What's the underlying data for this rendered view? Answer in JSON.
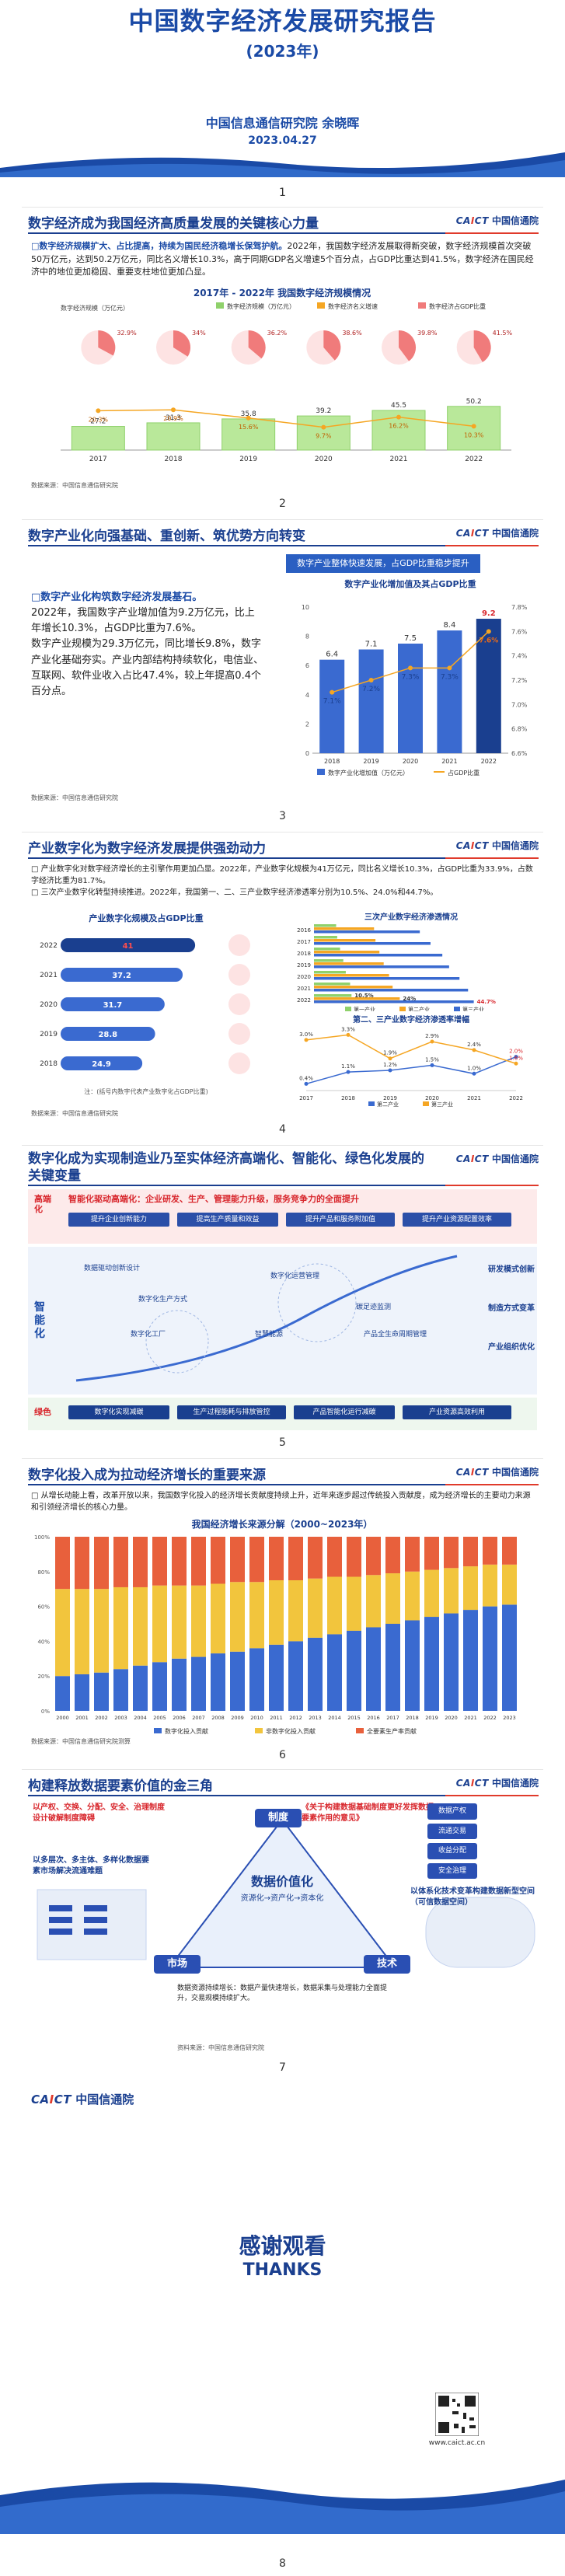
{
  "cover": {
    "title": "中国数字经济发展研究报告",
    "year": "(2023年)",
    "org": "中国信息通信研究院 余晓晖",
    "date": "2023.04.27"
  },
  "logo": {
    "en": "CAICT",
    "cn": "中国信通院"
  },
  "pages": [
    "1",
    "2",
    "3",
    "4",
    "5",
    "6",
    "7",
    "8"
  ],
  "slide2": {
    "title": "数字经济成为我国经济高质量发展的关键核心力量",
    "lead": "□数字经济规模扩大、占比提高，持续为国民经济稳增长保驾护航。",
    "body": "2022年，我国数字经济发展取得新突破，数字经济规模首次突破50万亿元，达到50.2万亿元，同比名义增长10.3%，高于同期GDP名义增速5个百分点，占GDP比重达到41.5%，数字经济在国民经济中的地位更加稳固、重要支柱地位更加凸显。",
    "source": "数据来源：中国信息通信研究院",
    "chart_title": "2017年 - 2022年 我国数字经济规模情况",
    "ylabel": "数字经济规模（万亿元）",
    "legend": [
      "数字经济规模（万亿元）",
      "数字经济名义增速",
      "数字经济占GDP比重"
    ]
  },
  "slide3": {
    "title": "数字产业化向强基础、重创新、筑优势方向转变",
    "banner": "数字产业整体快速发展，占GDP比重稳步提升",
    "lead": "□数字产业化构筑数字经济发展基石。",
    "body1": "2022年，我国数字产业增加值为9.2万亿元，比上年增长10.3%，占GDP比重为7.6%。",
    "body2": "数字产业规模为29.3万亿元，同比增长9.8%，数字产业化基础夯实。产业内部结构持续软化，电信业、互联网、软件业收入占比47.4%，较上年提高0.4个百分点。",
    "chart_title": "数字产业化增加值及其占GDP比重",
    "source": "数据来源：中国信息通信研究院",
    "legend": [
      "数字产业化增加值（万亿元）",
      "占GDP比重"
    ]
  },
  "slide4": {
    "title": "产业数字化为数字经济发展提供强劲动力",
    "line1": "□ 产业数字化对数字经济增长的主引擎作用更加凸显。2022年，产业数字化规模为41万亿元，同比名义增长10.3%，占GDP比重为33.9%，占数字经济比重为81.7%。",
    "line2": "□ 三次产业数字化转型持续推进。2022年，我国第一、二、三产业数字经济渗透率分别为10.5%、24.0%和44.7%。",
    "left_chart_title": "产业数字化规模及占GDP比重",
    "left_note": "注：(括号内数字代表产业数字化占GDP比重)",
    "right_top_title": "三次产业数字经济渗透情况",
    "right_bottom_title": "第二、三产业数字经济渗透率增幅",
    "source": "数据来源：中国信息通信研究院",
    "right_legend": [
      "第一产业",
      "第二产业",
      "第三产业"
    ]
  },
  "slide5": {
    "title": "数字化成为实现制造业乃至实体经济高端化、智能化、绿色化发展的关键变量",
    "row1_label": "高端化",
    "row1_text": "智能化驱动高端化：企业研发、生产、管理能力升级，服务竞争力的全面提升",
    "row1_boxes": [
      "提升企业创新能力",
      "提高生产质量和效益",
      "提升产品和服务附加值",
      "提升产业资源配置效率"
    ],
    "row2_label": "智能化",
    "row2_items": [
      "数据驱动创新设计",
      "数字化生产方式",
      "数字化工厂",
      "数字化运营管理",
      "智慧能源",
      "碳足迹监测",
      "产品全生命周期管理"
    ],
    "right_items": [
      "研发模式创新",
      "制造方式变革",
      "产业组织优化"
    ],
    "row3_label": "绿色",
    "row3_boxes": [
      "数字化实现减碳",
      "生产过程能耗与排放管控",
      "产品智能化运行减碳",
      "产业资源高效利用"
    ]
  },
  "slide6": {
    "title": "数字化投入成为拉动经济增长的重要来源",
    "body": "□ 从增长动能上看，改革开放以来，我国数字化投入的经济增长贡献度持续上升，近年来逐步超过传统投入贡献度，成为经济增长的主要动力来源和引领经济增长的核心力量。",
    "chart_title": "我国经济增长来源分解（2000~2023年）",
    "source": "数据来源：中国信息通信研究院测算",
    "legend": [
      "数字化投入贡献",
      "非数字化投入贡献",
      "全要素生产率贡献"
    ]
  },
  "slide7": {
    "title": "构建释放数据要素价值的金三角",
    "left_top": "以产权、交换、分配、安全、治理制度设计破解制度障碍",
    "left_mid": "以多层次、多主体、多样化数据要素市场解决流通难题",
    "center_system": "制度",
    "center_title": "数据价值化",
    "center_sub": "资源化→资产化→资本化",
    "market": "市场",
    "tech": "技术",
    "right_top": "《关于构建数据基础制度更好发挥数据要素作用的意见》",
    "right_mid": "以体系化技术变革构建数据新型空间（可信数据空间）",
    "right_boxes": [
      "数据产权",
      "流通交易",
      "收益分配",
      "安全治理"
    ],
    "bottom_text": "数据资源持续增长：数据产量快速增长，数据采集与处理能力全面提升，交易规模持续扩大。",
    "bottom_note": "资料来源：中国信息通信研究院"
  },
  "slide8": {
    "thanks_cn": "感谢观看",
    "thanks_en": "THANKS",
    "url": "www.caict.ac.cn"
  },
  "chart_data": [
    {
      "type": "bar",
      "title": "2017年 - 2022年 我国数字经济规模情况",
      "categories": [
        "2017",
        "2018",
        "2019",
        "2020",
        "2021",
        "2022"
      ],
      "series": [
        {
          "name": "数字经济规模（万亿元）",
          "values": [
            27.2,
            31.3,
            35.8,
            39.2,
            45.5,
            50.2
          ]
        },
        {
          "name": "数字经济名义增速",
          "values": [
            20.3,
            20.9,
            15.6,
            9.7,
            16.2,
            10.3
          ]
        },
        {
          "name": "数字经济占GDP比重",
          "values": [
            32.9,
            34.0,
            36.2,
            38.6,
            39.8,
            41.5
          ]
        }
      ]
    },
    {
      "type": "bar",
      "title": "数字产业化增加值及其占GDP比重",
      "categories": [
        "2018",
        "2019",
        "2020",
        "2021",
        "2022"
      ],
      "series": [
        {
          "name": "数字产业化增加值（万亿元）",
          "values": [
            6.4,
            7.1,
            7.5,
            8.4,
            9.2
          ]
        },
        {
          "name": "占GDP比重",
          "values": [
            7.1,
            7.2,
            7.3,
            7.3,
            7.6
          ]
        }
      ]
    },
    {
      "type": "bar",
      "title": "产业数字化规模及占GDP比重",
      "categories": [
        "2018",
        "2019",
        "2020",
        "2021",
        "2022"
      ],
      "values": [
        24.9,
        28.8,
        31.7,
        37.2,
        41.0
      ]
    },
    {
      "type": "bar",
      "title": "三次产业数字经济渗透情况",
      "categories": [
        "2016",
        "2017",
        "2018",
        "2019",
        "2020",
        "2021",
        "2022"
      ],
      "series": [
        {
          "name": "第一产业",
          "values": [
            6.2,
            6.5,
            7.3,
            8.2,
            8.9,
            10.1,
            10.5
          ]
        },
        {
          "name": "第二产业",
          "values": [
            16.8,
            17.2,
            18.3,
            19.5,
            21.0,
            22.0,
            24.0
          ]
        },
        {
          "name": "第三产业",
          "values": [
            29.6,
            32.6,
            35.9,
            37.8,
            40.7,
            43.1,
            44.7
          ]
        }
      ]
    },
    {
      "type": "line",
      "title": "第二、三产业数字经济渗透率增幅",
      "categories": [
        "2017",
        "2018",
        "2019",
        "2020",
        "2021",
        "2022"
      ],
      "series": [
        {
          "name": "第二产业",
          "values": [
            0.4,
            1.1,
            1.2,
            1.5,
            1.0,
            2.0
          ]
        },
        {
          "name": "第三产业",
          "values": [
            3.0,
            3.3,
            1.9,
            2.9,
            2.4,
            1.6
          ]
        }
      ]
    },
    {
      "type": "bar",
      "title": "我国经济增长来源分解（2000~2023年）",
      "categories": [
        "2000",
        "2001",
        "2002",
        "2003",
        "2004",
        "2005",
        "2006",
        "2007",
        "2008",
        "2009",
        "2010",
        "2011",
        "2012",
        "2013",
        "2014",
        "2015",
        "2016",
        "2017",
        "2018",
        "2019",
        "2020",
        "2021",
        "2022",
        "2023"
      ],
      "series": [
        {
          "name": "数字化投入贡献",
          "values": [
            20,
            21,
            22,
            24,
            26,
            28,
            30,
            31,
            33,
            34,
            36,
            38,
            40,
            42,
            44,
            46,
            48,
            50,
            52,
            54,
            56,
            58,
            60,
            61
          ]
        },
        {
          "name": "非数字化投入贡献",
          "values": [
            50,
            49,
            48,
            47,
            45,
            44,
            42,
            41,
            40,
            40,
            38,
            37,
            35,
            34,
            33,
            31,
            30,
            29,
            28,
            27,
            26,
            25,
            24,
            23
          ]
        },
        {
          "name": "全要素生产率贡献",
          "values": [
            30,
            30,
            30,
            29,
            29,
            28,
            28,
            28,
            27,
            26,
            26,
            25,
            25,
            24,
            23,
            23,
            22,
            21,
            20,
            19,
            18,
            17,
            16,
            16
          ]
        }
      ]
    }
  ]
}
